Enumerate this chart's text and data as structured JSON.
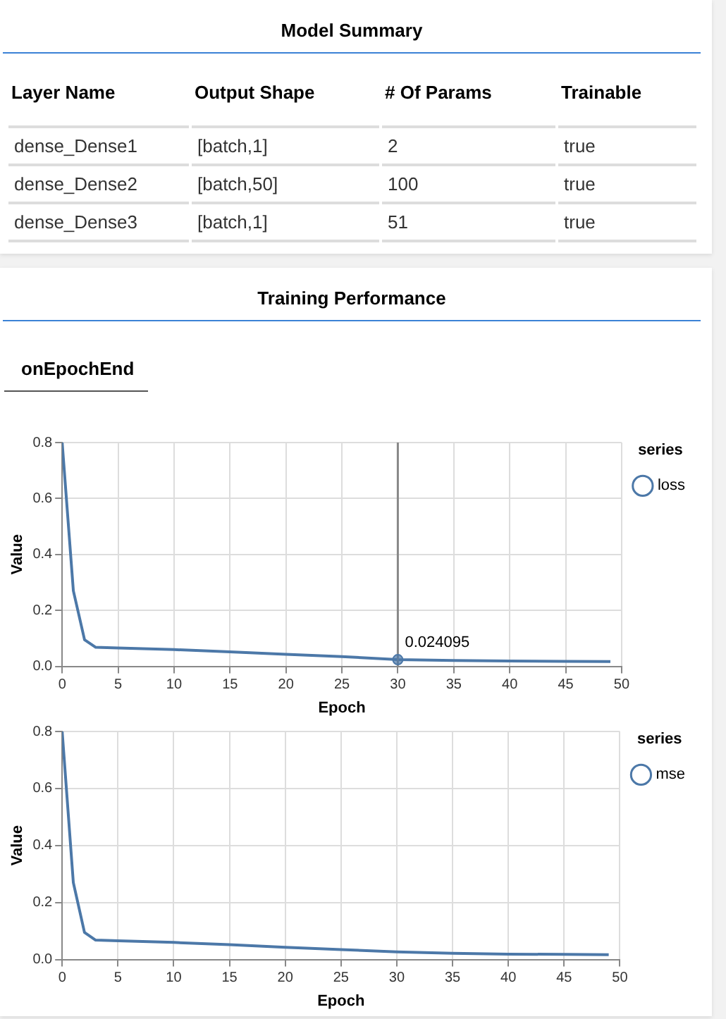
{
  "chart_data": [
    {
      "type": "other",
      "title": "Model Summary",
      "annotations": [
        "Layer Name",
        "Output Shape",
        "# Of Params",
        "Trainable",
        "dense_Dense1",
        "[batch,1]",
        "2",
        "true",
        "dense_Dense2",
        "[batch,50]",
        "100",
        "true",
        "dense_Dense3",
        "[batch,1]",
        "51",
        "true"
      ]
    },
    {
      "type": "line",
      "title": "Training Performance",
      "subtitle": "onEpochEnd",
      "xlabel": "Epoch",
      "ylabel": "Value",
      "legend_title": "series",
      "legend": "top right",
      "grid": true,
      "marker": "none",
      "xlim": [
        0,
        50
      ],
      "xticks": [
        0,
        5,
        10,
        15,
        20,
        25,
        30,
        35,
        40,
        45,
        50
      ],
      "ylim": [
        0,
        0.8
      ],
      "yticks": [
        {
          "value": 0,
          "label": "0.0"
        },
        {
          "value": 0.2,
          "label": "0.2"
        },
        {
          "value": 0.4,
          "label": "0.4"
        },
        {
          "value": 0.6,
          "label": "0.6"
        },
        {
          "value": 0.8,
          "label": "0.8"
        }
      ],
      "series": [
        {
          "name": "loss",
          "color": "#4c78a8",
          "x": [
            0,
            1,
            2,
            3,
            5,
            10,
            15,
            20,
            25,
            30,
            35,
            40,
            45,
            49
          ],
          "values": [
            0.8,
            0.27,
            0.095,
            0.068,
            0.066,
            0.06,
            0.052,
            0.043,
            0.035,
            0.024095,
            0.021,
            0.019,
            0.018,
            0.017
          ]
        }
      ],
      "ref_lines": [
        {
          "axis": "x",
          "value": 30,
          "color": "#888888"
        }
      ],
      "annotations": [
        {
          "text": "0.024095",
          "x": 30,
          "y": 0.024095
        }
      ]
    },
    {
      "type": "line",
      "xlabel": "Epoch",
      "ylabel": "Value",
      "legend_title": "series",
      "legend": "top right",
      "grid": true,
      "marker": "none",
      "xlim": [
        0,
        50
      ],
      "xticks": [
        0,
        5,
        10,
        15,
        20,
        25,
        30,
        35,
        40,
        45,
        50
      ],
      "ylim": [
        0,
        0.8
      ],
      "yticks": [
        {
          "value": 0,
          "label": "0.0"
        },
        {
          "value": 0.2,
          "label": "0.2"
        },
        {
          "value": 0.4,
          "label": "0.4"
        },
        {
          "value": 0.6,
          "label": "0.6"
        },
        {
          "value": 0.8,
          "label": "0.8"
        }
      ],
      "series": [
        {
          "name": "mse",
          "color": "#4c78a8",
          "x": [
            0,
            1,
            2,
            3,
            5,
            10,
            15,
            20,
            25,
            30,
            35,
            40,
            45,
            49
          ],
          "values": [
            0.8,
            0.27,
            0.095,
            0.068,
            0.066,
            0.06,
            0.052,
            0.043,
            0.035,
            0.027,
            0.022,
            0.019,
            0.018,
            0.017
          ]
        }
      ]
    }
  ]
}
